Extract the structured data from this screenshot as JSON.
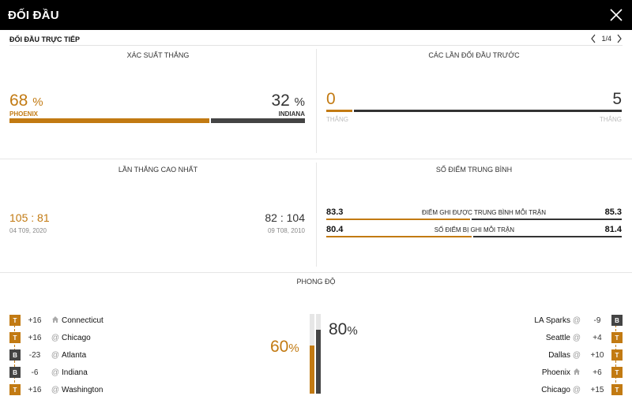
{
  "header": {
    "title": "ĐỐI ĐẦU",
    "close_icon": "close-icon"
  },
  "subheader": {
    "title": "ĐỐI ĐẦU TRỰC TIẾP",
    "pager": "1/4"
  },
  "colors": {
    "accent": "#c27a12",
    "dark": "#444444",
    "header_bg": "#000000"
  },
  "win_probability": {
    "title": "XÁC SUẤT THẮNG",
    "home": {
      "value": "68",
      "unit": "%",
      "team": "PHOENIX",
      "fraction": 0.68
    },
    "away": {
      "value": "32",
      "unit": "%",
      "team": "INDIANA",
      "fraction": 0.32
    }
  },
  "previous_meetings": {
    "title": "CÁC LẦN ĐỐI ĐẦU TRƯỚC",
    "home": {
      "wins": "0",
      "label": "THẮNG"
    },
    "away": {
      "wins": "5",
      "label": "THẮNG"
    }
  },
  "highest_win": {
    "title": "LẦN THẮNG CAO NHẤT",
    "home": {
      "score_a": "105",
      "sep": ":",
      "score_b": "81",
      "date": "04 T09, 2020"
    },
    "away": {
      "score_a": "82",
      "sep": ":",
      "score_b": "104",
      "date": "09 T08, 2010"
    }
  },
  "average_points": {
    "title": "SỐ ĐIỂM TRUNG BÌNH",
    "rows": [
      {
        "label": "ĐIỂM GHI ĐƯỢC TRUNG BÌNH MỖI TRẬN",
        "home": "83.3",
        "away": "85.3"
      },
      {
        "label": "SỐ ĐIỂM BỊ GHI MỖI TRẬN",
        "home": "80.4",
        "away": "81.4"
      }
    ]
  },
  "form": {
    "title": "PHONG ĐỘ",
    "home_pct": "60",
    "away_pct": "80",
    "unit": "%",
    "home_level": 0.6,
    "away_level": 0.8,
    "home_games": [
      {
        "result": "T",
        "diff": "+16",
        "venue": "home",
        "opponent": "Connecticut"
      },
      {
        "result": "T",
        "diff": "+16",
        "venue": "@",
        "opponent": "Chicago"
      },
      {
        "result": "B",
        "diff": "-23",
        "venue": "@",
        "opponent": "Atlanta"
      },
      {
        "result": "B",
        "diff": "-6",
        "venue": "@",
        "opponent": "Indiana"
      },
      {
        "result": "T",
        "diff": "+16",
        "venue": "@",
        "opponent": "Washington"
      }
    ],
    "away_games": [
      {
        "result": "B",
        "diff": "-9",
        "venue": "@",
        "opponent": "LA Sparks"
      },
      {
        "result": "T",
        "diff": "+4",
        "venue": "@",
        "opponent": "Seattle"
      },
      {
        "result": "T",
        "diff": "+10",
        "venue": "@",
        "opponent": "Dallas"
      },
      {
        "result": "T",
        "diff": "+6",
        "venue": "home",
        "opponent": "Phoenix"
      },
      {
        "result": "T",
        "diff": "+15",
        "venue": "@",
        "opponent": "Chicago"
      }
    ]
  }
}
